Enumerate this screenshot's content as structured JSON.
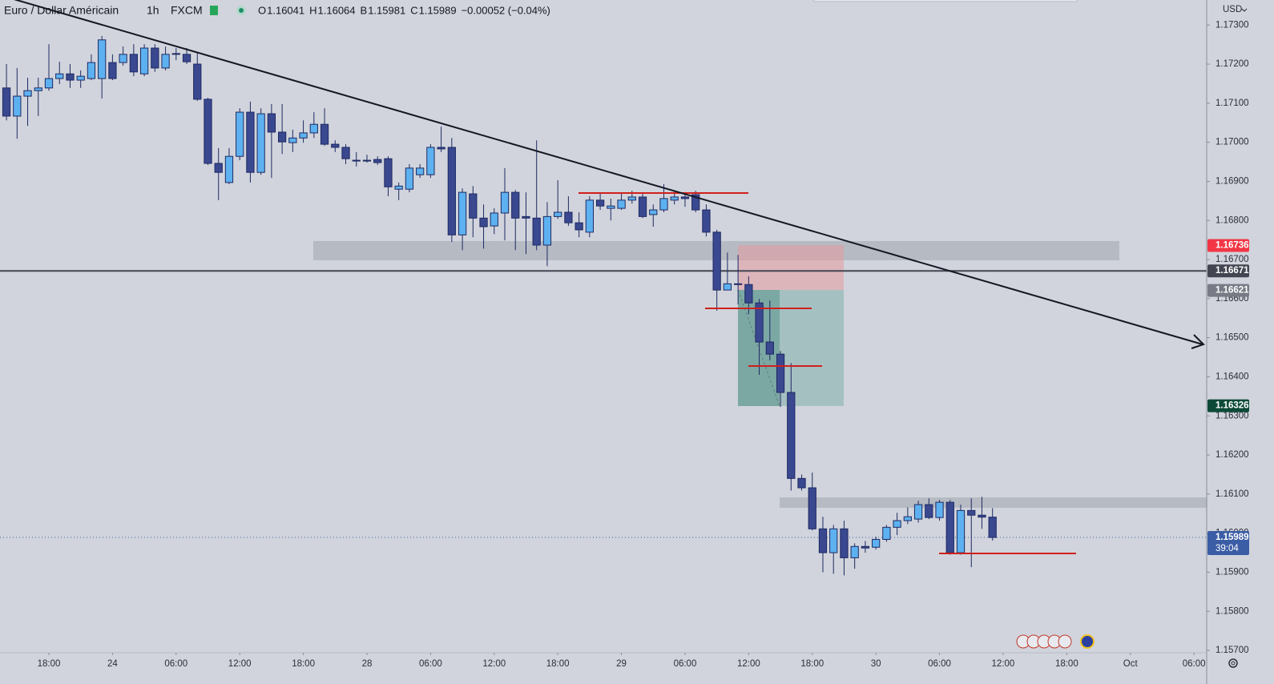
{
  "chart_data": {
    "type": "candlestick",
    "header": {
      "symbol": "Euro / Dollar Américain",
      "interval": "1h",
      "exchange": "FXCM",
      "ohlc": [
        {
          "label": "O",
          "value": 1.16041
        },
        {
          "label": "H",
          "value": 1.16064
        },
        {
          "label": "B",
          "value": 1.15981
        },
        {
          "label": "C",
          "value": 1.15989
        }
      ],
      "change": "−0.00052 (−0.04%)"
    },
    "currency": "USD",
    "countdown": "39:04",
    "up_color": "#5eb1f0",
    "down_color": "#3a4890",
    "wick_color": "#1e2a63",
    "grid": false,
    "ylim": [
      1.15694,
      1.17364
    ],
    "yticks": [
      {
        "value": 1.157,
        "label": "1.15700"
      },
      {
        "value": 1.158,
        "label": "1.15800"
      },
      {
        "value": 1.159,
        "label": "1.15900"
      },
      {
        "value": 1.16,
        "label": "1.16000"
      },
      {
        "value": 1.161,
        "label": "1.16100"
      },
      {
        "value": 1.162,
        "label": "1.16200"
      },
      {
        "value": 1.163,
        "label": "1.16300"
      },
      {
        "value": 1.164,
        "label": "1.16400"
      },
      {
        "value": 1.165,
        "label": "1.16500"
      },
      {
        "value": 1.166,
        "label": "1.16600"
      },
      {
        "value": 1.167,
        "label": "1.16700"
      },
      {
        "value": 1.168,
        "label": "1.16800"
      },
      {
        "value": 1.169,
        "label": "1.16900"
      },
      {
        "value": 1.17,
        "label": "1.17000"
      },
      {
        "value": 1.171,
        "label": "1.17100"
      },
      {
        "value": 1.172,
        "label": "1.17200"
      },
      {
        "value": 1.173,
        "label": "1.17300"
      }
    ],
    "xlim": [
      13.39,
      127.2
    ],
    "xticks": [
      {
        "value": 18,
        "label": "18:00"
      },
      24,
      {
        "value": 30,
        "label": "06:00"
      },
      {
        "value": 36,
        "label": "12:00"
      },
      {
        "value": 42,
        "label": "18:00"
      },
      {
        "value": 48,
        "label": "28"
      },
      {
        "value": 54,
        "label": "06:00"
      },
      {
        "value": 60,
        "label": "12:00"
      },
      {
        "value": 66,
        "label": "18:00"
      },
      {
        "value": 72,
        "label": "29"
      },
      {
        "value": 78,
        "label": "06:00"
      },
      {
        "value": 84,
        "label": "12:00"
      },
      {
        "value": 90,
        "label": "18:00"
      },
      {
        "value": 96,
        "label": "30"
      },
      {
        "value": 102,
        "label": "06:00"
      },
      {
        "value": 108,
        "label": "12:00"
      },
      {
        "value": 114,
        "label": "18:00"
      },
      {
        "value": 120,
        "label": "Oct"
      },
      {
        "value": 126,
        "label": "06:00"
      }
    ],
    "price_labels": [
      {
        "value": 1.16736,
        "color": "#f23645"
      },
      {
        "value": 1.16671,
        "color": "#434651"
      },
      {
        "value": 1.16621,
        "color": "#787b86"
      },
      {
        "value": 1.16326,
        "color": "#0c4a37"
      },
      {
        "value": 1.15989,
        "color": "#3b5da6"
      }
    ],
    "x": [
      14,
      15,
      16,
      17,
      18,
      19,
      20,
      21,
      22,
      23,
      24,
      25,
      26,
      27,
      28,
      29,
      30,
      31,
      32,
      33,
      34,
      35,
      36,
      37,
      38,
      39,
      40,
      41,
      42,
      43,
      44,
      45,
      46,
      47,
      48,
      49,
      50,
      51,
      52,
      53,
      54,
      55,
      56,
      57,
      58,
      59,
      60,
      61,
      62,
      63,
      64,
      65,
      66,
      67,
      68,
      69,
      70,
      71,
      72,
      73,
      74,
      75,
      76,
      77,
      78,
      79,
      80,
      81,
      82,
      83,
      84,
      85,
      86,
      87,
      88,
      89,
      90,
      91,
      92,
      93,
      94,
      95,
      96,
      97,
      98,
      99,
      100,
      101,
      102,
      103,
      104,
      105,
      106,
      107
    ],
    "open": [
      1.17139,
      1.17067,
      1.17118,
      1.17132,
      1.17139,
      1.17163,
      1.17175,
      1.17159,
      1.17163,
      1.17163,
      1.17204,
      1.17204,
      1.17225,
      1.17175,
      1.17241,
      1.1719,
      1.17225,
      1.17225,
      1.172,
      1.1711,
      1.16946,
      1.16897,
      1.16964,
      1.17077,
      1.16923,
      1.17073,
      1.17026,
      1.16999,
      1.17011,
      1.17024,
      1.17046,
      1.16995,
      1.16987,
      1.16954,
      1.16954,
      1.16956,
      1.16958,
      1.1688,
      1.1688,
      1.16917,
      1.16917,
      1.16987,
      1.16987,
      1.16763,
      1.16868,
      1.16806,
      1.16786,
      1.16819,
      1.16872,
      1.1681,
      1.16806,
      1.16737,
      1.1681,
      1.16821,
      1.16794,
      1.1677,
      1.16852,
      1.16831,
      1.16831,
      1.16852,
      1.1686,
      1.16815,
      1.16827,
      1.16852,
      1.1686,
      1.16866,
      1.16827,
      1.1677,
      1.16622,
      1.16638,
      1.16636,
      1.16589,
      1.16489,
      1.16458,
      1.1636,
      1.1614,
      1.16116,
      1.16011,
      1.1595,
      1.16011,
      1.15937,
      1.15966,
      1.15964,
      1.15984,
      1.16015,
      1.16032,
      1.16036,
      1.16073,
      1.1604,
      1.16079,
      1.1595,
      1.16058,
      1.16046,
      1.16041
    ],
    "high": [
      1.172,
      1.1719,
      1.17165,
      1.17165,
      1.17251,
      1.17206,
      1.172,
      1.17184,
      1.17225,
      1.17272,
      1.17225,
      1.17245,
      1.17251,
      1.17251,
      1.17251,
      1.17245,
      1.17241,
      1.17241,
      1.17231,
      1.17114,
      1.16985,
      1.16985,
      1.17087,
      1.17104,
      1.17087,
      1.17098,
      1.17098,
      1.17032,
      1.17056,
      1.17077,
      1.17087,
      1.17005,
      1.16995,
      1.16975,
      1.16968,
      1.16964,
      1.16964,
      1.16897,
      1.16944,
      1.16944,
      1.16995,
      1.1704,
      1.17011,
      1.16882,
      1.16888,
      1.16841,
      1.16831,
      1.16934,
      1.16878,
      1.16872,
      1.17005,
      1.16847,
      1.16903,
      1.16862,
      1.16821,
      1.16862,
      1.16872,
      1.16856,
      1.16872,
      1.16876,
      1.16872,
      1.16841,
      1.16893,
      1.16876,
      1.16872,
      1.16876,
      1.16841,
      1.16776,
      1.16718,
      1.16712,
      1.16657,
      1.16599,
      1.16595,
      1.16466,
      1.16435,
      1.1615,
      1.16155,
      1.16042,
      1.16021,
      1.16032,
      1.15974,
      1.1598,
      1.15991,
      1.16021,
      1.16052,
      1.16066,
      1.16083,
      1.16089,
      1.16085,
      1.16085,
      1.16073,
      1.16089,
      1.16093,
      1.16064
    ],
    "low": [
      1.17056,
      1.17009,
      1.17042,
      1.17067,
      1.17132,
      1.17149,
      1.17139,
      1.17139,
      1.17159,
      1.17112,
      1.17159,
      1.17196,
      1.17169,
      1.17169,
      1.1718,
      1.17184,
      1.1721,
      1.172,
      1.17106,
      1.16942,
      1.16852,
      1.16893,
      1.16954,
      1.16897,
      1.16917,
      1.16909,
      1.1697,
      1.16975,
      1.16999,
      1.17011,
      1.16991,
      1.16975,
      1.16944,
      1.16938,
      1.16948,
      1.16942,
      1.16862,
      1.16852,
      1.16872,
      1.16909,
      1.16909,
      1.16975,
      1.16745,
      1.16724,
      1.16757,
      1.16728,
      1.16765,
      1.16749,
      1.16724,
      1.16714,
      1.16724,
      1.16683,
      1.16804,
      1.16786,
      1.16757,
      1.16757,
      1.16827,
      1.168,
      1.16827,
      1.16843,
      1.16806,
      1.16784,
      1.16821,
      1.16841,
      1.16835,
      1.16821,
      1.16759,
      1.16569,
      1.16622,
      1.16585,
      1.1656,
      1.16405,
      1.16442,
      1.16323,
      1.16109,
      1.16109,
      1.16007,
      1.159,
      1.15896,
      1.15892,
      1.15909,
      1.1595,
      1.15958,
      1.15978,
      1.15995,
      1.16023,
      1.16027,
      1.16036,
      1.16032,
      1.15945,
      1.15945,
      1.15913,
      1.16011,
      1.15981
    ],
    "close": [
      1.17067,
      1.17118,
      1.17132,
      1.17139,
      1.17163,
      1.17175,
      1.17159,
      1.17169,
      1.17204,
      1.17262,
      1.17163,
      1.17225,
      1.1718,
      1.17241,
      1.1719,
      1.17225,
      1.17227,
      1.17206,
      1.1711,
      1.16946,
      1.16923,
      1.16964,
      1.17077,
      1.16923,
      1.17073,
      1.17026,
      1.17001,
      1.17011,
      1.17024,
      1.17046,
      1.16995,
      1.16987,
      1.16958,
      1.16952,
      1.16952,
      1.16948,
      1.16886,
      1.16888,
      1.16934,
      1.16934,
      1.16987,
      1.16983,
      1.16763,
      1.16872,
      1.16806,
      1.16784,
      1.16819,
      1.16872,
      1.16806,
      1.16806,
      1.16737,
      1.1681,
      1.16821,
      1.16794,
      1.16776,
      1.16852,
      1.16837,
      1.16837,
      1.16852,
      1.1686,
      1.1681,
      1.16827,
      1.16856,
      1.1686,
      1.16856,
      1.16827,
      1.1677,
      1.16622,
      1.16638,
      1.16636,
      1.16589,
      1.16489,
      1.16458,
      1.1636,
      1.1614,
      1.16116,
      1.16011,
      1.1595,
      1.16011,
      1.15937,
      1.15966,
      1.15962,
      1.15984,
      1.16015,
      1.16032,
      1.16042,
      1.16073,
      1.1604,
      1.16079,
      1.1595,
      1.16058,
      1.16046,
      1.16041,
      1.15989
    ]
  }
}
